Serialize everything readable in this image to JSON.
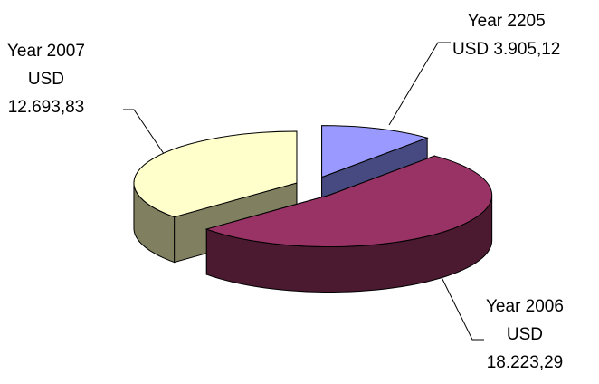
{
  "chart_data": {
    "type": "pie",
    "style": "3d-exploded",
    "slices": [
      {
        "category": "Year 2205",
        "currency": "USD",
        "value_label": "3.905,12",
        "value": 3905.12,
        "color": "#9999ff",
        "side_color": "#474a80"
      },
      {
        "category": "Year 2006",
        "currency": "USD",
        "value_label": "18.223,29",
        "value": 18223.29,
        "color": "#993366",
        "side_color": "#4b1a30"
      },
      {
        "category": "Year 2007",
        "currency": "USD",
        "value_label": "12.693,83",
        "value": 12693.83,
        "color": "#ffffcc",
        "side_color": "#808060"
      }
    ],
    "legend": "none"
  }
}
